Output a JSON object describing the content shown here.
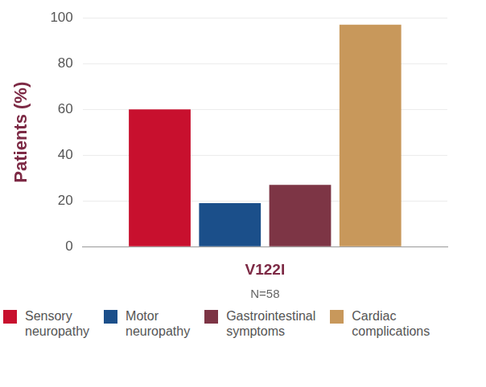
{
  "chart_data": {
    "type": "bar",
    "categories": [
      "V122I"
    ],
    "annotations": [
      "N=58"
    ],
    "ylabel": "Patients (%)",
    "series": [
      {
        "name": "Sensory neuropathy",
        "color": "#c8102e",
        "values": [
          60
        ]
      },
      {
        "name": "Motor neuropathy",
        "color": "#1b4f8a",
        "values": [
          19
        ]
      },
      {
        "name": "Gastrointestinal symptoms",
        "color": "#7d3545",
        "values": [
          27
        ]
      },
      {
        "name": "Cardiac complications",
        "color": "#c8985b",
        "values": [
          97
        ]
      }
    ],
    "ylim": [
      0,
      100
    ],
    "yticks": [
      0,
      20,
      40,
      60,
      80,
      100
    ],
    "grid": true,
    "legend": "bottom"
  }
}
